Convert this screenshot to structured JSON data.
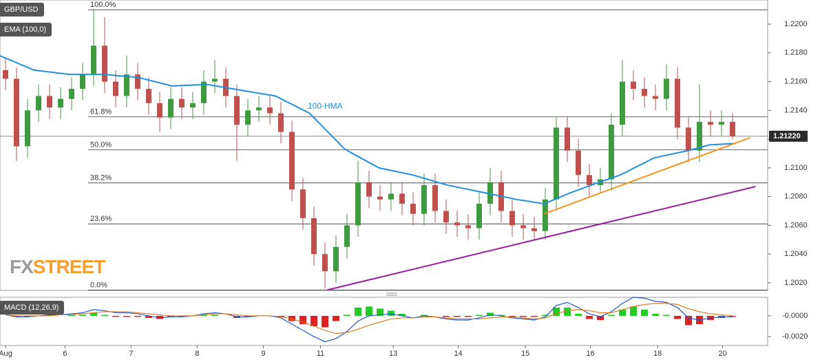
{
  "chart_data": [
    {
      "type": "candlestick",
      "candles": {
        "name": "GBP/USD",
        "up_color": "#3f9b3f",
        "down_color": "#c0504d",
        "open": [
          1.2168,
          1.2162,
          1.2115,
          1.214,
          1.215,
          1.2142,
          1.2148,
          1.2155,
          1.2165,
          1.2185,
          1.216,
          1.215,
          1.2165,
          1.2155,
          1.2145,
          1.2135,
          1.2148,
          1.2142,
          1.2145,
          1.216,
          1.2162,
          1.215,
          1.213,
          1.214,
          1.2142,
          1.2138,
          1.2125,
          1.2085,
          1.2065,
          1.204,
          1.2028,
          1.2045,
          1.206,
          1.209,
          1.208,
          1.2078,
          1.2082,
          1.2075,
          1.2068,
          1.2088,
          1.207,
          1.2062,
          1.206,
          1.2058,
          1.2075,
          1.209,
          1.207,
          1.206,
          1.2058,
          1.2056,
          1.2078,
          1.2128,
          1.2112,
          1.2095,
          1.2088,
          1.2092,
          1.213,
          1.216,
          1.2155,
          1.215,
          1.2148,
          1.2162,
          1.2128,
          1.2112,
          1.2132,
          1.213,
          1.2132
        ],
        "high": [
          1.2176,
          1.217,
          1.2148,
          1.2158,
          1.2158,
          1.2156,
          1.2163,
          1.2173,
          1.221,
          1.2205,
          1.2168,
          1.2178,
          1.2173,
          1.2163,
          1.2153,
          1.2156,
          1.2156,
          1.2153,
          1.2168,
          1.2175,
          1.217,
          1.2158,
          1.2148,
          1.215,
          1.215,
          1.2146,
          1.2133,
          1.2093,
          1.2073,
          1.2048,
          1.2053,
          1.2068,
          1.2105,
          1.2098,
          1.2088,
          1.209,
          1.209,
          1.2083,
          1.2096,
          1.2096,
          1.2078,
          1.207,
          1.2068,
          1.2083,
          1.21,
          1.2098,
          1.2078,
          1.2068,
          1.2066,
          1.2086,
          1.2135,
          1.2136,
          1.212,
          1.2103,
          1.21,
          1.2138,
          1.2175,
          1.2168,
          1.2163,
          1.2158,
          1.2172,
          1.217,
          1.2136,
          1.2158,
          1.214,
          1.214,
          1.2138
        ],
        "low": [
          1.2154,
          1.2105,
          1.2107,
          1.2132,
          1.2134,
          1.2134,
          1.214,
          1.2147,
          1.2157,
          1.2152,
          1.2142,
          1.2142,
          1.2147,
          1.2137,
          1.2125,
          1.2127,
          1.2134,
          1.2134,
          1.2137,
          1.2152,
          1.2142,
          1.2105,
          1.2122,
          1.2132,
          1.213,
          1.2117,
          1.2077,
          1.2057,
          1.2032,
          1.2016,
          1.202,
          1.2037,
          1.2052,
          1.2072,
          1.207,
          1.207,
          1.2067,
          1.206,
          1.206,
          1.2062,
          1.2054,
          1.2052,
          1.205,
          1.205,
          1.2067,
          1.2062,
          1.2052,
          1.205,
          1.205,
          1.205,
          1.207,
          1.2104,
          1.2087,
          1.208,
          1.2082,
          1.2084,
          1.2122,
          1.2147,
          1.2142,
          1.214,
          1.214,
          1.212,
          1.2104,
          1.2104,
          1.2122,
          1.2122,
          1.212
        ],
        "close": [
          1.2162,
          1.2115,
          1.214,
          1.215,
          1.2142,
          1.2148,
          1.2155,
          1.2165,
          1.2185,
          1.216,
          1.215,
          1.2165,
          1.2155,
          1.2145,
          1.2135,
          1.2148,
          1.2142,
          1.2145,
          1.216,
          1.2162,
          1.215,
          1.213,
          1.214,
          1.2142,
          1.2138,
          1.2125,
          1.2085,
          1.2065,
          1.204,
          1.2028,
          1.2045,
          1.206,
          1.209,
          1.208,
          1.2078,
          1.2082,
          1.2075,
          1.2068,
          1.2088,
          1.207,
          1.2062,
          1.206,
          1.2058,
          1.2075,
          1.209,
          1.207,
          1.206,
          1.2058,
          1.2056,
          1.2078,
          1.2128,
          1.2112,
          1.2095,
          1.2088,
          1.2092,
          1.213,
          1.216,
          1.2155,
          1.215,
          1.2148,
          1.2162,
          1.2128,
          1.2112,
          1.2132,
          1.213,
          1.2132,
          1.2122
        ]
      },
      "series": [
        {
          "name": "EMA (100,0)",
          "color": "#1e90e0",
          "width": 2,
          "x": [
            -0.5,
            2.6,
            5.8,
            8.9,
            12,
            15.1,
            18.3,
            21.4,
            24.5,
            27.6,
            30.8,
            33.9,
            37,
            40.1,
            43.3,
            46.4,
            48.9,
            51.4,
            53.9,
            55.8,
            58.9,
            62,
            63.9,
            66.3
          ],
          "values": [
            1.2178,
            1.2168,
            1.2165,
            1.2165,
            1.2163,
            1.2157,
            1.2158,
            1.2154,
            1.215,
            1.2138,
            1.2113,
            1.21,
            1.2095,
            1.2088,
            1.2083,
            1.2078,
            1.2075,
            1.2083,
            1.209,
            1.2095,
            1.2107,
            1.2112,
            1.2116,
            1.2117
          ]
        },
        {
          "color": "#f0961e",
          "width": 2,
          "x": [
            48.9,
            67.6
          ],
          "values": [
            1.2068,
            1.2121
          ]
        },
        {
          "color": "#9b1ba0",
          "width": 2,
          "x": [
            29.2,
            68.1
          ],
          "values": [
            1.2015,
            1.2087
          ]
        }
      ],
      "annotation": "100-HMA",
      "levels": [
        {
          "label": "100.0%",
          "value": 1.221
        },
        {
          "label": "61.8%",
          "value": 1.21355
        },
        {
          "label": "50.0%",
          "value": 1.21125
        },
        {
          "label": "38.2%",
          "value": 1.20895
        },
        {
          "label": "23.6%",
          "value": 1.2061
        },
        {
          "label": "0.0%",
          "value": 1.2015
        }
      ],
      "last_price": {
        "value": 1.2122,
        "label": "1.21220"
      },
      "logo": [
        "FX",
        "STREET"
      ],
      "xlim": [
        -0.5,
        69.19
      ],
      "xticks": [
        {
          "value": 0,
          "label": "Aug"
        },
        {
          "value": 5.4,
          "label": "6"
        },
        {
          "value": 11.4,
          "label": "7"
        },
        {
          "value": 17.4,
          "label": "8"
        },
        {
          "value": 23.4,
          "label": "9"
        },
        {
          "value": 28.6,
          "label": "11"
        },
        {
          "value": 35.2,
          "label": "13"
        },
        {
          "value": 41.1,
          "label": "14"
        },
        {
          "value": 47.2,
          "label": "15"
        },
        {
          "value": 53.1,
          "label": "16"
        },
        {
          "value": 59.2,
          "label": "18"
        },
        {
          "value": 65.1,
          "label": "20"
        }
      ],
      "ylim": [
        1.20147,
        1.22168
      ],
      "yticks": [
        {
          "value": 1.202,
          "label": "1.2020"
        },
        {
          "value": 1.204,
          "label": "1.2040"
        },
        {
          "value": 1.206,
          "label": "1.2060"
        },
        {
          "value": 1.208,
          "label": "1.2080"
        },
        {
          "value": 1.21,
          "label": "1.2100"
        },
        {
          "value": 1.212,
          "label": "1.2120"
        },
        {
          "value": 1.214,
          "label": "1.2140"
        },
        {
          "value": 1.216,
          "label": "1.2160"
        },
        {
          "value": 1.218,
          "label": "1.2180"
        },
        {
          "value": 1.22,
          "label": "1.2200"
        }
      ]
    },
    {
      "type": "macd",
      "title": "MACD (12,26,9)",
      "macd_color": "#2255cc",
      "signal_color": "#e07820",
      "up_color": "#22cc22",
      "down_color": "#dd2222",
      "macd": [
        0.0001,
        -0.0001,
        -0.0001,
        0,
        0.0001,
        0.0001,
        0.0002,
        0.0003,
        0.0006,
        0.0005,
        0.0003,
        0.0003,
        0.0002,
        0,
        -0.0002,
        -0.0001,
        -0.0001,
        0,
        0.0002,
        0.0003,
        0.0002,
        -0.0001,
        -0.0001,
        0,
        0,
        -0.0002,
        -0.0008,
        -0.0014,
        -0.002,
        -0.0025,
        -0.0022,
        -0.0015,
        -0.0005,
        0,
        0.0001,
        0.0002,
        0,
        -0.0002,
        0,
        -0.0001,
        -0.0003,
        -0.0004,
        -0.0004,
        -0.0002,
        0.0001,
        0,
        -0.0002,
        -0.0003,
        -0.0004,
        -0.0001,
        0.001,
        0.0013,
        0.0008,
        0.0002,
        -0.0001,
        0.0004,
        0.0012,
        0.0018,
        0.0017,
        0.0014,
        0.0013,
        0.0008,
        -0.0002,
        -0.0004,
        -0.0002,
        -0.0001,
        -0.0001
      ],
      "signal": [
        0.0001,
        0,
        0,
        0,
        0,
        0.0001,
        0.0001,
        0.0002,
        0.0003,
        0.0004,
        0.0004,
        0.0004,
        0.0003,
        0.0002,
        0.0001,
        0,
        0,
        0,
        0.0001,
        0.0002,
        0.0002,
        0.0001,
        0,
        0,
        0,
        -0.0001,
        -0.0003,
        -0.0006,
        -0.001,
        -0.0014,
        -0.0017,
        -0.0016,
        -0.0013,
        -0.0009,
        -0.0006,
        -0.0003,
        -0.0002,
        -0.0002,
        -0.0001,
        -0.0001,
        -0.0002,
        -0.0003,
        -0.0003,
        -0.0003,
        -0.0002,
        -0.0001,
        -0.0001,
        -0.0002,
        -0.0003,
        -0.0002,
        0.0002,
        0.0005,
        0.0006,
        0.0005,
        0.0003,
        0.0003,
        0.0006,
        0.0009,
        0.0011,
        0.0012,
        0.0012,
        0.0011,
        0.0007,
        0.0004,
        0.0002,
        0.0001,
        0
      ],
      "histogram": [
        0,
        -0.0001,
        -0.0001,
        0,
        0.0001,
        0,
        0.0001,
        0.0001,
        0.0003,
        0.0001,
        -0.0001,
        -0.0001,
        -0.0001,
        -0.0002,
        -0.0003,
        -0.0001,
        -0.0001,
        0,
        0.0001,
        0.0001,
        0,
        -0.0002,
        -0.0001,
        0,
        0,
        -0.0001,
        -0.0005,
        -0.0008,
        -0.001,
        -0.0011,
        -0.0005,
        0.0001,
        0.0008,
        0.0009,
        0.0007,
        0.0005,
        0.0002,
        0,
        0.0001,
        0,
        -0.0001,
        -0.0001,
        -0.0001,
        0.0001,
        0.0003,
        0.0001,
        -0.0001,
        -0.0001,
        -0.0001,
        0.0001,
        0.0008,
        0.0008,
        0.0002,
        -0.0003,
        -0.0004,
        0.0001,
        0.0006,
        0.0009,
        0.0006,
        0.0002,
        0.0001,
        -0.0003,
        -0.0009,
        -0.0008,
        -0.0004,
        -0.0002,
        -0.0001
      ],
      "ylim": [
        -0.00286,
        0.00179
      ],
      "yticks": [
        {
          "value": 0,
          "label": "-0.0000"
        },
        {
          "value": -0.002,
          "label": "-0.0020"
        }
      ]
    }
  ]
}
